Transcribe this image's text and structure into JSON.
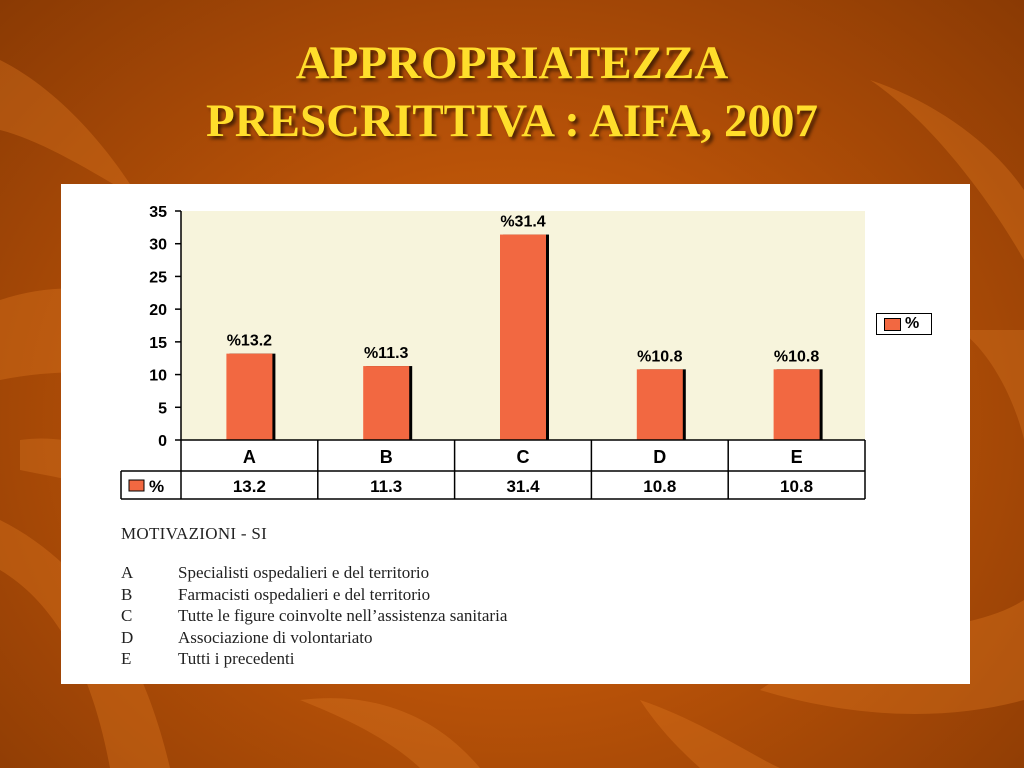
{
  "slide": {
    "title_line1": "APPROPRIATEZZA",
    "title_line2": "PRESCRITTIVA : AIFA, 2007"
  },
  "chart_data": {
    "type": "bar",
    "categories": [
      "A",
      "B",
      "C",
      "D",
      "E"
    ],
    "series": [
      {
        "name": "%",
        "values": [
          13.2,
          11.3,
          31.4,
          10.8,
          10.8
        ]
      }
    ],
    "data_labels": [
      "%13.2",
      "%11.3",
      "%31.4",
      "%10.8",
      "%10.8"
    ],
    "table_values": [
      "13.2",
      "11.3",
      "31.4",
      "10.8",
      "10.8"
    ],
    "y_ticks": [
      0,
      5,
      10,
      15,
      20,
      25,
      30,
      35
    ],
    "ylim": [
      0,
      35
    ],
    "legend": {
      "label": "%",
      "placement": "right"
    },
    "colors": {
      "bar": "#f26841",
      "plot_bg": "#f7f4dc"
    }
  },
  "motivations": {
    "heading": "MOTIVAZIONI - SI",
    "items": [
      {
        "letter": "A",
        "text": "Specialisti ospedalieri e del territorio"
      },
      {
        "letter": "B",
        "text": "Farmacisti ospedalieri e del territorio"
      },
      {
        "letter": "C",
        "text": "Tutte le figure coinvolte nell’assistenza sanitaria"
      },
      {
        "letter": "D",
        "text": "Associazione di volontariato"
      },
      {
        "letter": "E",
        "text": "Tutti i precedenti"
      }
    ]
  }
}
